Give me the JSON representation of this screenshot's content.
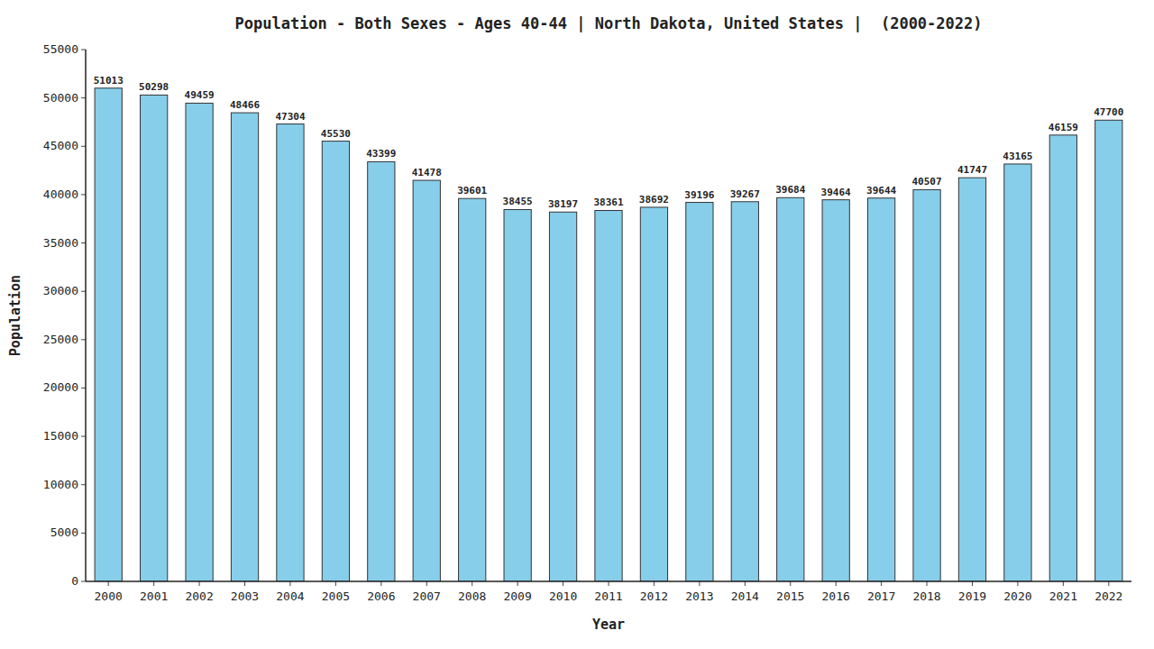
{
  "chart_data": {
    "type": "bar",
    "title": "Population - Both Sexes - Ages 40-44 | North Dakota, United States |  (2000-2022)",
    "xlabel": "Year",
    "ylabel": "Population",
    "categories": [
      "2000",
      "2001",
      "2002",
      "2003",
      "2004",
      "2005",
      "2006",
      "2007",
      "2008",
      "2009",
      "2010",
      "2011",
      "2012",
      "2013",
      "2014",
      "2015",
      "2016",
      "2017",
      "2018",
      "2019",
      "2020",
      "2021",
      "2022"
    ],
    "values": [
      51013,
      50298,
      49459,
      48466,
      47304,
      45530,
      43399,
      41478,
      39601,
      38455,
      38197,
      38361,
      38692,
      39196,
      39267,
      39684,
      39464,
      39644,
      40507,
      41747,
      43165,
      46159,
      47700
    ],
    "color": "#87CEEB",
    "ylim": [
      0,
      55000
    ],
    "yticks": [
      0,
      5000,
      10000,
      15000,
      20000,
      25000,
      30000,
      35000,
      40000,
      45000,
      50000,
      55000
    ],
    "grid": false,
    "data_labels": true
  }
}
